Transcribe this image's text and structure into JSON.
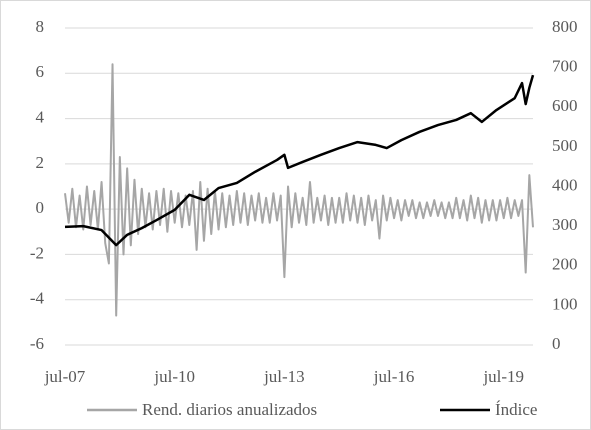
{
  "chart_data": {
    "type": "line",
    "xlim": [
      2007.5,
      2020.3
    ],
    "xticks": [
      {
        "value": 2007.5,
        "label": "jul-07"
      },
      {
        "value": 2010.5,
        "label": "jul-10"
      },
      {
        "value": 2013.5,
        "label": "jul-13"
      },
      {
        "value": 2016.5,
        "label": "jul-16"
      },
      {
        "value": 2019.5,
        "label": "jul-19"
      }
    ],
    "ylim": [
      -6,
      8
    ],
    "yticks": [
      -6,
      -4,
      -2,
      0,
      2,
      4,
      6,
      8
    ],
    "y2lim": [
      0,
      800
    ],
    "y2ticks": [
      0,
      100,
      200,
      300,
      400,
      500,
      600,
      700,
      800
    ],
    "grid": true,
    "legend": "bottom",
    "series": [
      {
        "name": "Rend. diarios anualizados",
        "color": "#a6a6a6",
        "axis": "y",
        "x": [
          2007.5,
          2007.6,
          2007.7,
          2007.8,
          2007.9,
          2008.0,
          2008.1,
          2008.2,
          2008.3,
          2008.4,
          2008.5,
          2008.6,
          2008.7,
          2008.8,
          2008.9,
          2009.0,
          2009.1,
          2009.2,
          2009.3,
          2009.4,
          2009.5,
          2009.6,
          2009.7,
          2009.8,
          2009.9,
          2010.0,
          2010.1,
          2010.2,
          2010.3,
          2010.4,
          2010.5,
          2010.6,
          2010.7,
          2010.8,
          2010.9,
          2011.0,
          2011.1,
          2011.2,
          2011.3,
          2011.4,
          2011.5,
          2011.6,
          2011.7,
          2011.8,
          2011.9,
          2012.0,
          2012.1,
          2012.2,
          2012.3,
          2012.4,
          2012.5,
          2012.6,
          2012.7,
          2012.8,
          2012.9,
          2013.0,
          2013.1,
          2013.2,
          2013.3,
          2013.4,
          2013.5,
          2013.6,
          2013.7,
          2013.8,
          2013.9,
          2014.0,
          2014.1,
          2014.2,
          2014.3,
          2014.4,
          2014.5,
          2014.6,
          2014.7,
          2014.8,
          2014.9,
          2015.0,
          2015.1,
          2015.2,
          2015.3,
          2015.4,
          2015.5,
          2015.6,
          2015.7,
          2015.8,
          2015.9,
          2016.0,
          2016.1,
          2016.2,
          2016.3,
          2016.4,
          2016.5,
          2016.6,
          2016.7,
          2016.8,
          2016.9,
          2017.0,
          2017.1,
          2017.2,
          2017.3,
          2017.4,
          2017.5,
          2017.6,
          2017.7,
          2017.8,
          2017.9,
          2018.0,
          2018.1,
          2018.2,
          2018.3,
          2018.4,
          2018.5,
          2018.6,
          2018.7,
          2018.8,
          2018.9,
          2019.0,
          2019.1,
          2019.2,
          2019.3,
          2019.4,
          2019.5,
          2019.6,
          2019.7,
          2019.8,
          2019.9,
          2020.0,
          2020.1,
          2020.2,
          2020.3
        ],
        "values": [
          0.7,
          -0.6,
          0.9,
          -0.8,
          0.6,
          -0.9,
          1.0,
          -0.7,
          0.8,
          -0.9,
          1.2,
          -1.5,
          -2.4,
          6.4,
          -4.7,
          2.3,
          -2.0,
          1.8,
          -1.6,
          1.3,
          -1.1,
          0.9,
          -0.8,
          0.7,
          -0.9,
          0.8,
          -0.7,
          0.9,
          -1.0,
          0.8,
          -0.6,
          0.7,
          -0.8,
          0.6,
          -0.7,
          0.8,
          -1.8,
          1.2,
          -1.4,
          0.9,
          -1.1,
          0.8,
          -0.9,
          0.7,
          -0.8,
          0.6,
          -0.7,
          0.8,
          -0.6,
          0.7,
          -0.7,
          0.6,
          -0.5,
          0.7,
          -0.6,
          0.5,
          -0.6,
          0.7,
          -0.5,
          0.6,
          -3.0,
          1.0,
          -0.8,
          0.7,
          -0.6,
          0.5,
          -0.7,
          1.2,
          -0.6,
          0.5,
          -0.5,
          0.6,
          -0.7,
          0.5,
          -0.6,
          0.5,
          -0.6,
          0.7,
          -0.5,
          0.6,
          -0.6,
          0.5,
          -0.7,
          0.6,
          -0.5,
          0.4,
          -1.3,
          0.6,
          -0.5,
          0.5,
          -0.4,
          0.4,
          -0.5,
          0.4,
          -0.3,
          0.4,
          -0.4,
          0.3,
          -0.4,
          0.3,
          -0.3,
          0.4,
          -0.3,
          0.3,
          -0.4,
          0.3,
          -0.4,
          0.5,
          -0.4,
          0.4,
          -0.5,
          0.6,
          -0.4,
          0.5,
          -0.6,
          0.4,
          -0.5,
          0.4,
          -0.5,
          0.4,
          -0.4,
          0.5,
          -0.4,
          0.4,
          -0.3,
          0.4,
          -2.8,
          1.5,
          -0.8
        ]
      },
      {
        "name": "Índice",
        "color": "#000000",
        "axis": "y2",
        "x": [
          2007.5,
          2008.0,
          2008.5,
          2008.9,
          2009.2,
          2009.6,
          2010.0,
          2010.5,
          2010.9,
          2011.3,
          2011.7,
          2012.2,
          2012.7,
          2013.3,
          2013.5,
          2013.6,
          2014.0,
          2014.5,
          2015.0,
          2015.5,
          2016.0,
          2016.3,
          2016.7,
          2017.2,
          2017.7,
          2018.2,
          2018.6,
          2018.9,
          2019.3,
          2019.8,
          2020.0,
          2020.1,
          2020.2,
          2020.3
        ],
        "values": [
          298,
          300,
          290,
          252,
          278,
          295,
          315,
          341,
          379,
          366,
          396,
          409,
          437,
          467,
          480,
          447,
          462,
          480,
          497,
          512,
          505,
          497,
          517,
          538,
          555,
          568,
          585,
          563,
          593,
          623,
          661,
          608,
          649,
          681
        ]
      }
    ]
  }
}
